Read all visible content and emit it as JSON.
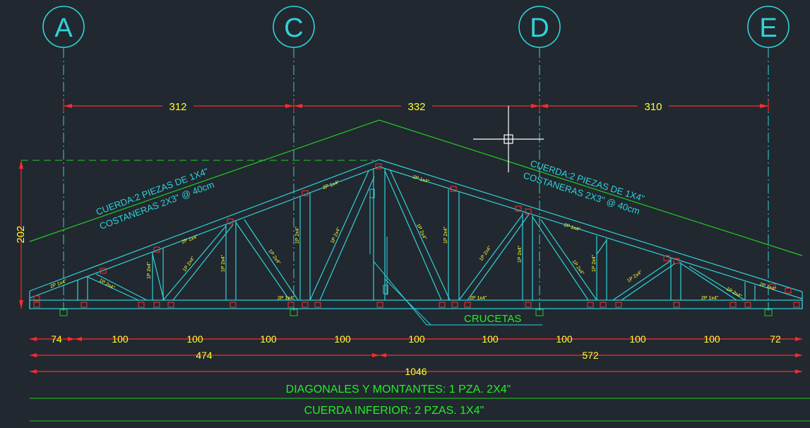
{
  "colors": {
    "background": "#212830",
    "truss": "#2fd3d9",
    "dimension": "#ff2a2a",
    "dimension_text": "#ffff33",
    "note_text": "#22ee22",
    "roof_line": "#22cc22",
    "cursor": "#ffffff",
    "marker": "#ff3030"
  },
  "grid_axes": [
    {
      "label": "A"
    },
    {
      "label": "C"
    },
    {
      "label": "D"
    },
    {
      "label": "E"
    }
  ],
  "axis_spacing_dims": [
    "312",
    "332",
    "310"
  ],
  "height_dim": "202",
  "panel_dims": [
    "74",
    "100",
    "100",
    "100",
    "100",
    "100",
    "100",
    "100",
    "100",
    "100",
    "72"
  ],
  "partial_dims": [
    "474",
    "572"
  ],
  "overall_dim": "1046",
  "chord_notes": {
    "left_line1": "CUERDA:2 PIEZAS DE 1X4\"",
    "left_line2": "COSTANERAS 2X3\" @ 40cm",
    "right_line1": "CUERDA:2 PIEZAS DE 1X4\"",
    "right_line2": "COSTANERAS 2X3\" @ 40cm"
  },
  "cross_label": "CRUCETAS",
  "member_labels": {
    "one_2x4": "1P 2x4\"",
    "two_1x4": "2P 1x4\""
  },
  "footer_notes": {
    "diagonals": "DIAGONALES Y MONTANTES: 1 PZA. 2X4\"",
    "bottom_chord": "CUERDA INFERIOR: 2 PZAS. 1X4\""
  }
}
